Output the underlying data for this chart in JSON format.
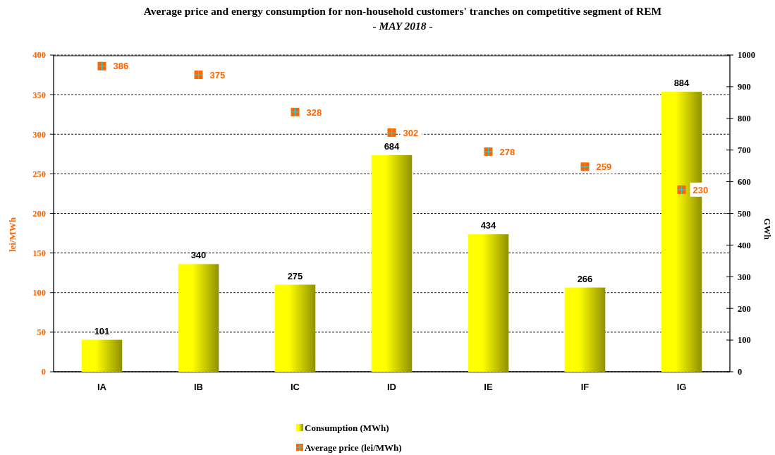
{
  "chart_data": {
    "type": "bar",
    "title": "Average price and energy consumption for non-household customers' tranches on competitive segment of REM",
    "subtitle": "- MAY 2018 -",
    "ylabel": "lei/MWh",
    "y2label": "GWh",
    "categories": [
      "IA",
      "IB",
      "IC",
      "ID",
      "IE",
      "IF",
      "IG"
    ],
    "series": [
      {
        "name": "Consumption (MWh)",
        "axis": "y2",
        "color": "#ffff00",
        "values": [
          101,
          340,
          275,
          684,
          434,
          266,
          884
        ]
      },
      {
        "name": "Average price (lei/MWh)",
        "type": "scatter",
        "color": "#ff6600",
        "values": [
          386,
          375,
          328,
          302,
          278,
          259,
          230
        ]
      }
    ],
    "ylim": [
      0,
      400
    ],
    "yticks": [
      0,
      50,
      100,
      150,
      200,
      250,
      300,
      350,
      400
    ],
    "y2lim": [
      0,
      1000
    ],
    "y2ticks": [
      0,
      100,
      200,
      300,
      400,
      500,
      600,
      700,
      800,
      900,
      1000
    ],
    "grid": "y",
    "legend": "bottom",
    "marker": "square",
    "data_labels": true
  }
}
